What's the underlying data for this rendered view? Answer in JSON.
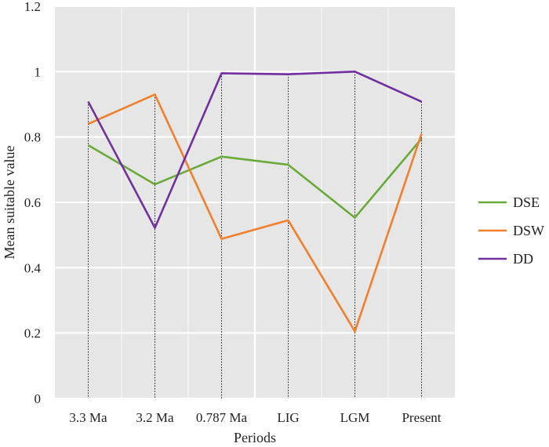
{
  "chart_data": {
    "type": "line",
    "categories": [
      "3.3 Ma",
      "3.2 Ma",
      "0.787 Ma",
      "LIG",
      "LGM",
      "Present"
    ],
    "series": [
      {
        "name": "DSE",
        "color": "#6aaa3a",
        "values": [
          0.775,
          0.655,
          0.74,
          0.715,
          0.553,
          0.795
        ]
      },
      {
        "name": "DSW",
        "color": "#f07f2e",
        "values": [
          0.84,
          0.93,
          0.488,
          0.545,
          0.205,
          0.81
        ]
      },
      {
        "name": "DD",
        "color": "#7030a0",
        "values": [
          0.908,
          0.522,
          0.995,
          0.992,
          1.0,
          0.908
        ]
      }
    ],
    "xlabel": "Periods",
    "ylabel": "Mean suitable value",
    "ylim": [
      0,
      1.2
    ],
    "yticks": [
      "0",
      "0.2",
      "0.4",
      "0.6",
      "0.8",
      "1",
      "1.2"
    ],
    "grid": true,
    "legend_position": "right",
    "background_color": "#e6e6e6",
    "grid_color": "#ffffff"
  }
}
